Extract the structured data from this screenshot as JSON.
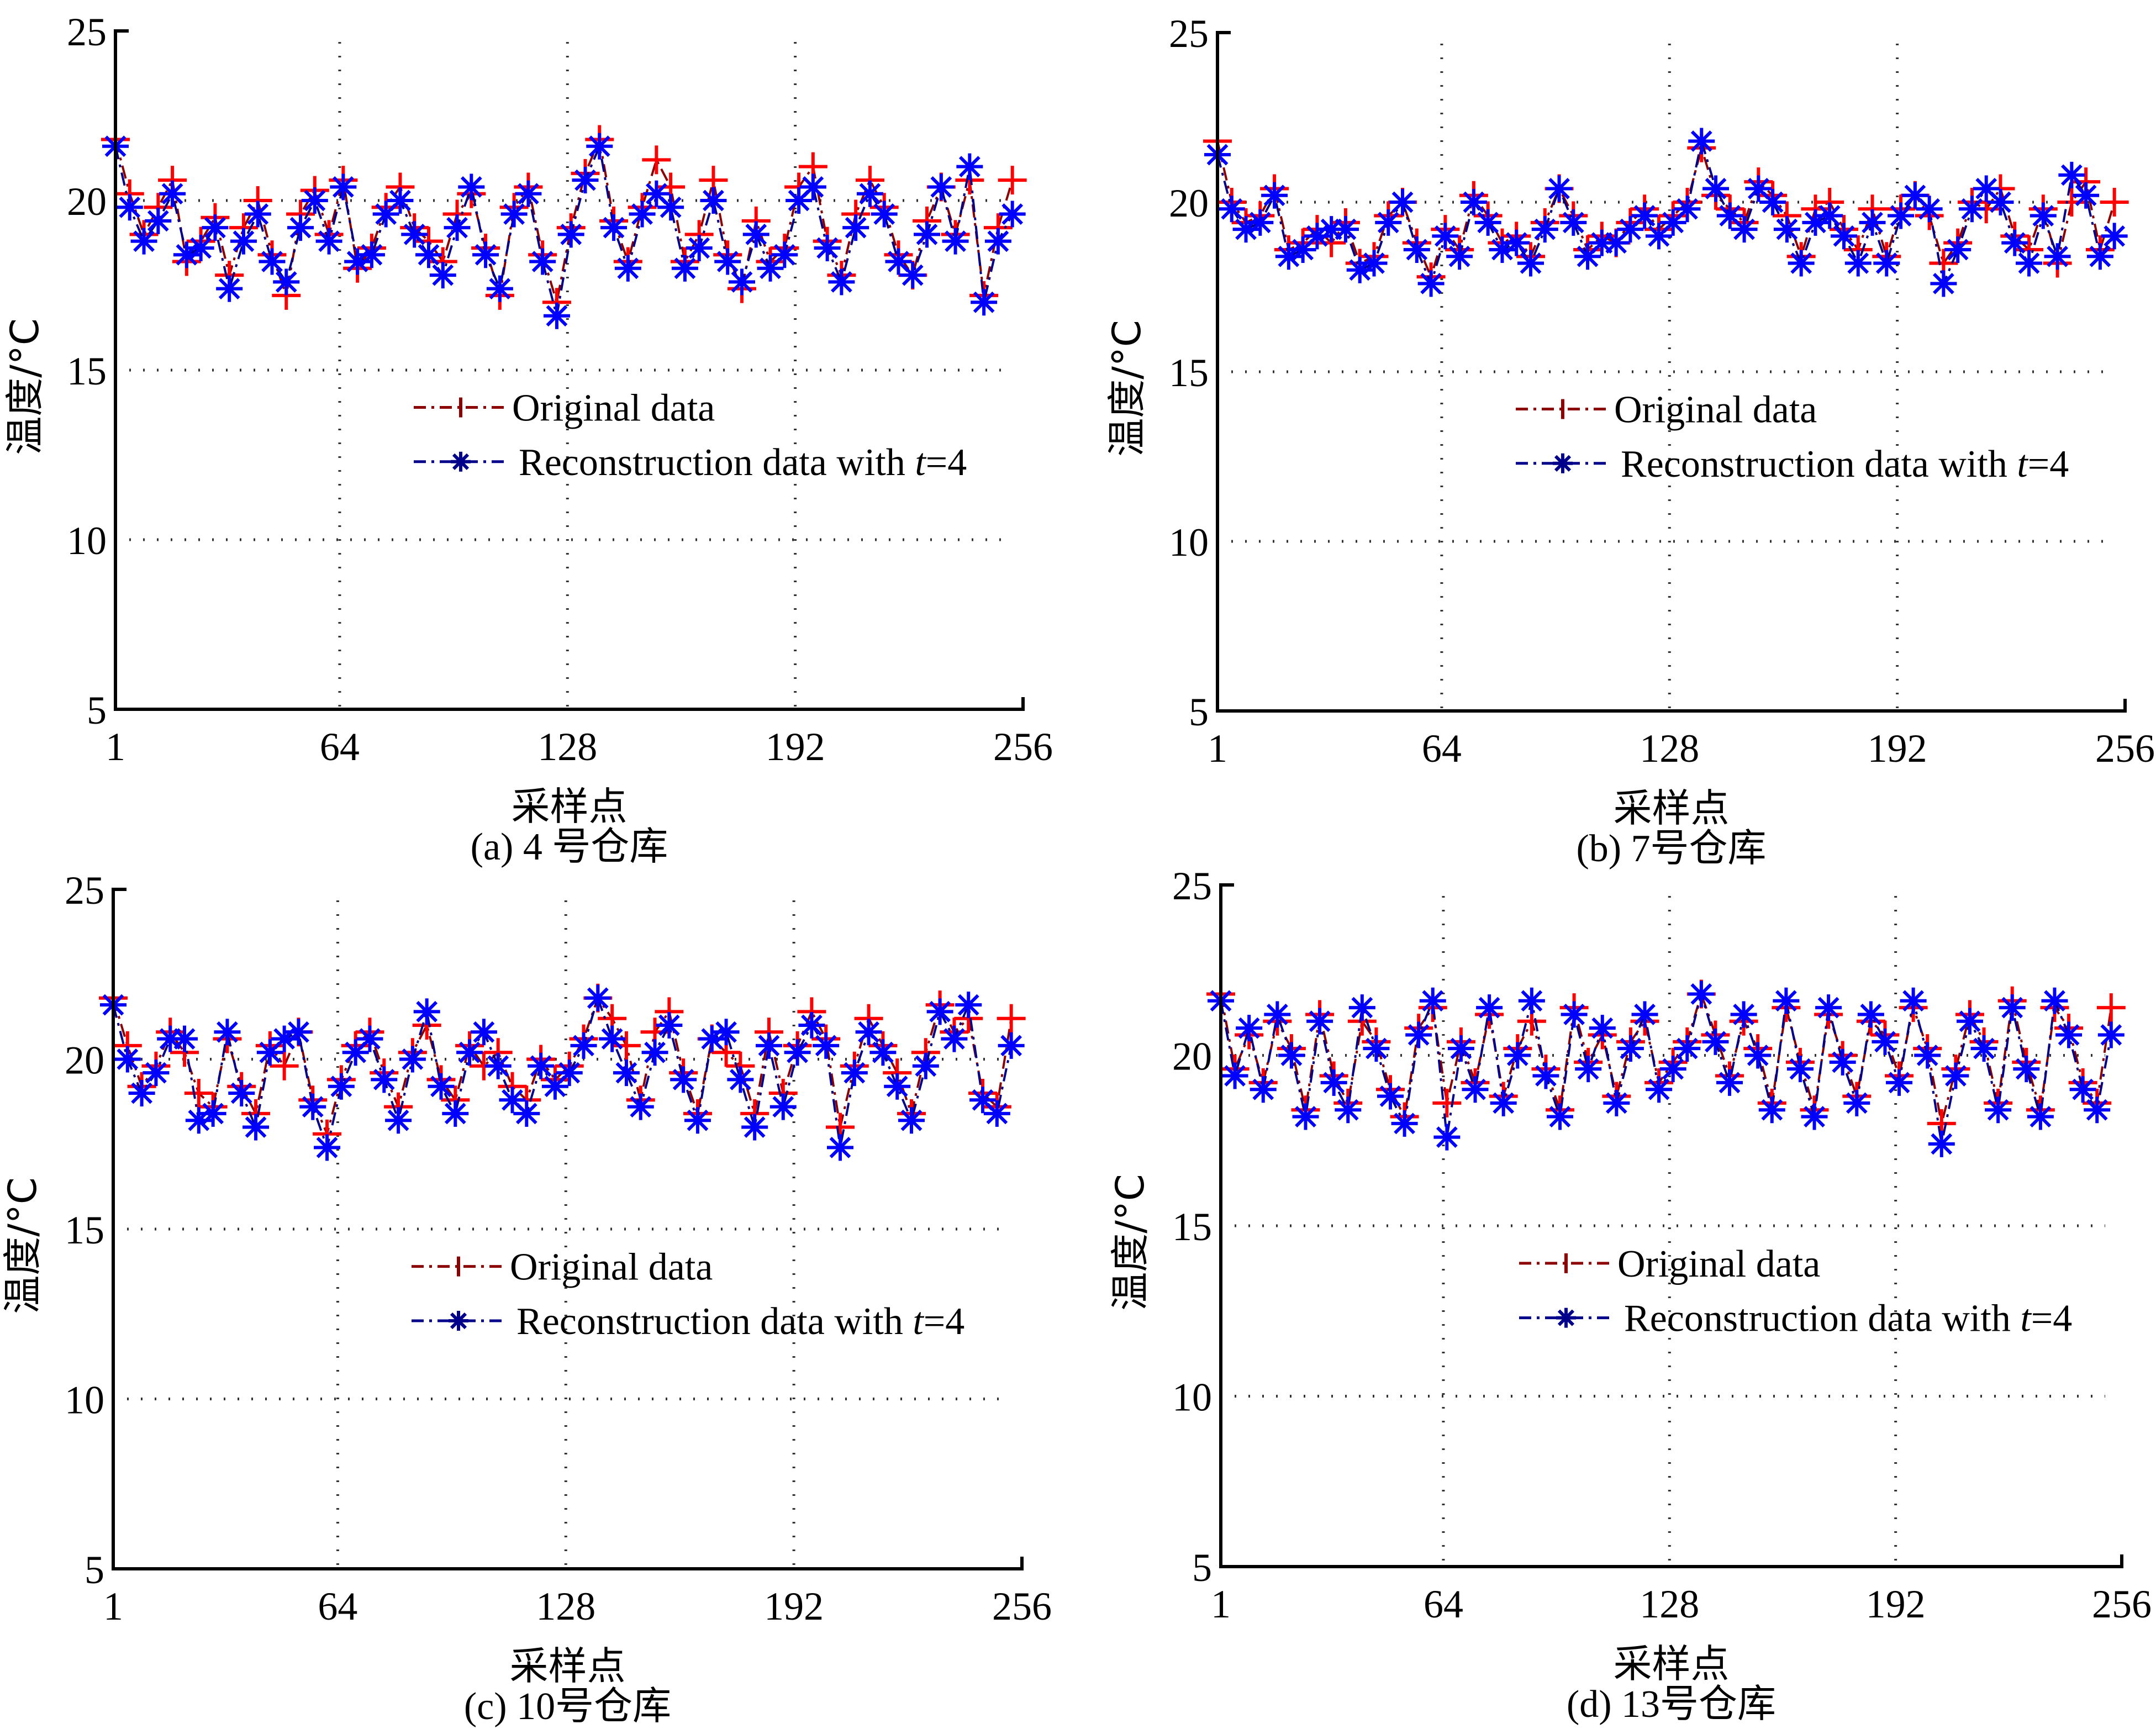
{
  "chart_data": [
    {
      "type": "line",
      "caption": "(a) 4 号仓库",
      "xlabel": "采样点",
      "ylabel": "温度/°C",
      "xlim": [
        1,
        256
      ],
      "ylim": [
        5,
        25
      ],
      "xticks": [
        "1",
        "64",
        "128",
        "192",
        "256"
      ],
      "xtick_values": [
        1,
        64,
        128,
        192,
        256
      ],
      "yticks": [
        "5",
        "10",
        "15",
        "20",
        "25"
      ],
      "ytick_values": [
        5,
        10,
        15,
        20,
        25
      ],
      "grid": true,
      "legend_position": "center",
      "legend": [
        "Original data",
        "Reconstruction data with ",
        "t",
        "=4"
      ],
      "x": [
        1,
        5,
        9,
        13,
        17,
        21,
        25,
        29,
        33,
        37,
        41,
        45,
        49,
        53,
        57,
        61,
        65,
        69,
        73,
        77,
        81,
        85,
        89,
        93,
        97,
        101,
        105,
        109,
        113,
        117,
        121,
        125,
        129,
        133,
        137,
        141,
        145,
        149,
        153,
        157,
        161,
        165,
        169,
        173,
        177,
        181,
        185,
        189,
        193,
        197,
        201,
        205,
        209,
        213,
        217,
        221,
        225,
        229,
        233,
        237,
        241,
        245,
        249,
        253
      ],
      "series": [
        {
          "name": "Original data",
          "color": "#ff0000",
          "values": [
            21.8,
            20.2,
            19.0,
            19.8,
            20.6,
            18.2,
            18.8,
            19.5,
            17.8,
            19.2,
            20.0,
            18.4,
            17.2,
            19.6,
            20.3,
            19.0,
            20.6,
            18.0,
            18.6,
            19.8,
            20.4,
            19.2,
            18.8,
            18.2,
            19.6,
            20.2,
            18.6,
            17.2,
            19.8,
            20.4,
            18.4,
            17.0,
            19.2,
            20.8,
            21.8,
            19.4,
            18.2,
            19.8,
            21.2,
            20.4,
            18.2,
            19.0,
            20.6,
            18.4,
            17.4,
            19.4,
            18.2,
            18.6,
            20.4,
            21.0,
            18.8,
            17.8,
            19.6,
            20.6,
            19.8,
            18.4,
            17.8,
            19.4,
            20.4,
            19.0,
            20.6,
            17.2,
            19.2,
            20.6
          ]
        },
        {
          "name": "Reconstruction data with t=4",
          "color": "#0000ff",
          "values": [
            21.6,
            19.8,
            18.8,
            19.4,
            20.2,
            18.4,
            18.6,
            19.2,
            17.4,
            18.8,
            19.6,
            18.2,
            17.6,
            19.2,
            20.0,
            18.8,
            20.4,
            18.2,
            18.4,
            19.6,
            20.0,
            19.0,
            18.4,
            17.8,
            19.2,
            20.4,
            18.4,
            17.4,
            19.6,
            20.2,
            18.2,
            16.6,
            19.0,
            20.6,
            21.6,
            19.2,
            18.0,
            19.6,
            20.2,
            19.8,
            18.0,
            18.6,
            20.0,
            18.2,
            17.6,
            19.0,
            18.0,
            18.4,
            20.0,
            20.4,
            18.6,
            17.6,
            19.2,
            20.2,
            19.6,
            18.2,
            17.8,
            19.0,
            20.4,
            18.8,
            21.0,
            17.0,
            18.8,
            19.6
          ]
        }
      ]
    },
    {
      "type": "line",
      "caption": "(b) 7号仓库",
      "xlabel": "采样点",
      "ylabel": "温度/°C",
      "xlim": [
        1,
        256
      ],
      "ylim": [
        5,
        25
      ],
      "xticks": [
        "1",
        "64",
        "128",
        "192",
        "256"
      ],
      "xtick_values": [
        1,
        64,
        128,
        192,
        256
      ],
      "yticks": [
        "5",
        "10",
        "15",
        "20",
        "25"
      ],
      "ytick_values": [
        5,
        10,
        15,
        20,
        25
      ],
      "grid": true,
      "legend_position": "center",
      "legend": [
        "Original data",
        "Reconstruction data with ",
        "t",
        "=4"
      ],
      "x": [
        1,
        5,
        9,
        13,
        17,
        21,
        25,
        29,
        33,
        37,
        41,
        45,
        49,
        53,
        57,
        61,
        65,
        69,
        73,
        77,
        81,
        85,
        89,
        93,
        97,
        101,
        105,
        109,
        113,
        117,
        121,
        125,
        129,
        133,
        137,
        141,
        145,
        149,
        153,
        157,
        161,
        165,
        169,
        173,
        177,
        181,
        185,
        189,
        193,
        197,
        201,
        205,
        209,
        213,
        217,
        221,
        225,
        229,
        233,
        237,
        241,
        245,
        249,
        253
      ],
      "series": [
        {
          "name": "Original data",
          "color": "#ff0000",
          "values": [
            21.8,
            20.0,
            19.4,
            19.6,
            20.4,
            18.6,
            18.8,
            19.2,
            18.8,
            19.4,
            18.2,
            18.4,
            19.6,
            20.0,
            18.8,
            17.8,
            19.2,
            18.6,
            20.2,
            19.6,
            18.8,
            19.0,
            18.4,
            19.4,
            20.4,
            19.6,
            18.6,
            19.0,
            18.8,
            19.4,
            19.8,
            19.2,
            19.6,
            20.0,
            21.6,
            20.2,
            19.8,
            19.4,
            20.6,
            20.2,
            19.6,
            18.4,
            19.8,
            20.0,
            19.2,
            18.6,
            19.8,
            18.4,
            19.8,
            20.2,
            19.6,
            18.2,
            18.8,
            20.0,
            19.8,
            20.4,
            19.0,
            18.6,
            19.8,
            18.2,
            20.0,
            20.6,
            18.6,
            20.0
          ]
        },
        {
          "name": "Reconstruction data with t=4",
          "color": "#0000ff",
          "values": [
            21.4,
            19.8,
            19.2,
            19.4,
            20.2,
            18.4,
            18.6,
            19.0,
            19.2,
            19.2,
            18.0,
            18.2,
            19.4,
            20.0,
            18.6,
            17.6,
            19.0,
            18.4,
            20.0,
            19.4,
            18.6,
            18.8,
            18.2,
            19.2,
            20.4,
            19.4,
            18.4,
            18.8,
            18.8,
            19.2,
            19.6,
            19.0,
            19.4,
            19.8,
            21.8,
            20.4,
            19.6,
            19.2,
            20.4,
            20.0,
            19.2,
            18.2,
            19.4,
            19.6,
            19.0,
            18.2,
            19.4,
            18.2,
            19.6,
            20.2,
            19.8,
            17.6,
            18.6,
            19.8,
            20.4,
            20.0,
            18.8,
            18.2,
            19.6,
            18.4,
            20.8,
            20.2,
            18.4,
            19.0
          ]
        }
      ]
    },
    {
      "type": "line",
      "caption": "(c) 10号仓库",
      "xlabel": "采样点",
      "ylabel": "温度/°C",
      "xlim": [
        1,
        256
      ],
      "ylim": [
        5,
        25
      ],
      "xticks": [
        "1",
        "64",
        "128",
        "192",
        "256"
      ],
      "xtick_values": [
        1,
        64,
        128,
        192,
        256
      ],
      "yticks": [
        "5",
        "10",
        "15",
        "20",
        "25"
      ],
      "ytick_values": [
        5,
        10,
        15,
        20,
        25
      ],
      "grid": true,
      "legend_position": "center",
      "legend": [
        "Original data",
        "Reconstruction data with ",
        "t",
        "=4"
      ],
      "x": [
        1,
        5,
        9,
        13,
        17,
        21,
        25,
        29,
        33,
        37,
        41,
        45,
        49,
        53,
        57,
        61,
        65,
        69,
        73,
        77,
        81,
        85,
        89,
        93,
        97,
        101,
        105,
        109,
        113,
        117,
        121,
        125,
        129,
        133,
        137,
        141,
        145,
        149,
        153,
        157,
        161,
        165,
        169,
        173,
        177,
        181,
        185,
        189,
        193,
        197,
        201,
        205,
        209,
        213,
        217,
        221,
        225,
        229,
        233,
        237,
        241,
        245,
        249,
        253
      ],
      "series": [
        {
          "name": "Original data",
          "color": "#ff0000",
          "values": [
            21.8,
            20.4,
            19.2,
            19.8,
            20.8,
            20.2,
            19.0,
            18.6,
            20.6,
            19.2,
            18.4,
            20.4,
            19.8,
            20.8,
            18.8,
            17.8,
            19.4,
            20.4,
            20.8,
            19.6,
            18.6,
            20.2,
            21.0,
            19.4,
            18.8,
            20.4,
            19.8,
            20.2,
            19.2,
            18.8,
            20.0,
            19.4,
            19.8,
            20.6,
            21.8,
            21.2,
            20.4,
            18.8,
            20.8,
            21.4,
            19.6,
            18.4,
            20.6,
            20.2,
            19.8,
            18.4,
            20.8,
            19.0,
            20.4,
            21.4,
            20.6,
            18.0,
            19.8,
            21.2,
            20.4,
            19.6,
            18.4,
            20.2,
            21.6,
            20.8,
            21.2,
            19.0,
            18.6,
            21.2
          ]
        },
        {
          "name": "Reconstruction data with t=4",
          "color": "#0000ff",
          "values": [
            21.6,
            20.0,
            19.0,
            19.6,
            20.6,
            20.6,
            18.2,
            18.4,
            20.8,
            19.0,
            18.0,
            20.2,
            20.6,
            20.8,
            18.6,
            17.4,
            19.2,
            20.2,
            20.6,
            19.4,
            18.2,
            20.0,
            21.4,
            19.2,
            18.4,
            20.2,
            20.8,
            19.8,
            18.8,
            18.4,
            19.8,
            19.2,
            19.6,
            20.4,
            21.8,
            20.6,
            19.6,
            18.6,
            20.2,
            21.0,
            19.4,
            18.2,
            20.6,
            20.8,
            19.4,
            18.0,
            20.4,
            18.6,
            20.2,
            21.0,
            20.4,
            17.4,
            19.6,
            20.8,
            20.2,
            19.2,
            18.2,
            19.8,
            21.4,
            20.6,
            21.6,
            18.8,
            18.4,
            20.4
          ]
        }
      ]
    },
    {
      "type": "line",
      "caption": "(d) 13号仓库",
      "xlabel": "采样点",
      "ylabel": "温度/°C",
      "xlim": [
        1,
        256
      ],
      "ylim": [
        5,
        25
      ],
      "xticks": [
        "1",
        "64",
        "128",
        "192",
        "256"
      ],
      "xtick_values": [
        1,
        64,
        128,
        192,
        256
      ],
      "yticks": [
        "5",
        "10",
        "15",
        "20",
        "25"
      ],
      "ytick_values": [
        5,
        10,
        15,
        20,
        25
      ],
      "grid": true,
      "legend_position": "center",
      "legend": [
        "Original data",
        "Reconstruction data with ",
        "t",
        "=4"
      ],
      "x": [
        1,
        5,
        9,
        13,
        17,
        21,
        25,
        29,
        33,
        37,
        41,
        45,
        49,
        53,
        57,
        61,
        65,
        69,
        73,
        77,
        81,
        85,
        89,
        93,
        97,
        101,
        105,
        109,
        113,
        117,
        121,
        125,
        129,
        133,
        137,
        141,
        145,
        149,
        153,
        157,
        161,
        165,
        169,
        173,
        177,
        181,
        185,
        189,
        193,
        197,
        201,
        205,
        209,
        213,
        217,
        221,
        225,
        229,
        233,
        237,
        241,
        245,
        249,
        253
      ],
      "series": [
        {
          "name": "Original data",
          "color": "#ff0000",
          "values": [
            21.8,
            19.6,
            20.6,
            19.2,
            21.0,
            20.2,
            18.4,
            21.2,
            19.4,
            18.6,
            21.0,
            20.4,
            19.0,
            18.2,
            20.8,
            21.4,
            18.6,
            20.4,
            19.2,
            21.2,
            18.8,
            20.2,
            21.0,
            19.6,
            18.4,
            21.4,
            19.8,
            20.6,
            18.8,
            20.4,
            21.0,
            19.2,
            19.8,
            20.4,
            21.8,
            20.6,
            19.4,
            21.0,
            20.2,
            18.6,
            21.4,
            19.8,
            18.4,
            21.2,
            20.0,
            18.8,
            21.0,
            20.6,
            19.4,
            21.4,
            20.2,
            18.0,
            19.6,
            21.2,
            20.4,
            18.6,
            21.6,
            19.8,
            18.4,
            21.4,
            20.8,
            19.2,
            18.6,
            21.4
          ]
        },
        {
          "name": "Reconstruction data with t=4",
          "color": "#0000ff",
          "values": [
            21.6,
            19.4,
            20.8,
            19.0,
            21.2,
            20.0,
            18.2,
            21.0,
            19.2,
            18.4,
            21.4,
            20.2,
            18.8,
            18.0,
            20.6,
            21.6,
            17.6,
            20.2,
            19.0,
            21.4,
            18.6,
            20.0,
            21.6,
            19.4,
            18.2,
            21.2,
            19.6,
            20.8,
            18.6,
            20.2,
            21.2,
            19.0,
            19.6,
            20.2,
            21.8,
            20.4,
            19.2,
            21.2,
            20.0,
            18.4,
            21.6,
            19.6,
            18.2,
            21.4,
            19.8,
            18.6,
            21.2,
            20.4,
            19.2,
            21.6,
            20.0,
            17.4,
            19.4,
            21.0,
            20.2,
            18.4,
            21.4,
            19.6,
            18.2,
            21.6,
            20.6,
            19.0,
            18.4,
            20.6
          ]
        }
      ]
    }
  ],
  "colors": {
    "original_marker": "#ff0000",
    "original_line": "#8b0000",
    "reconstruction_marker": "#0000ff",
    "reconstruction_line": "#00008b",
    "axis": "#000000",
    "grid": "#333333"
  }
}
